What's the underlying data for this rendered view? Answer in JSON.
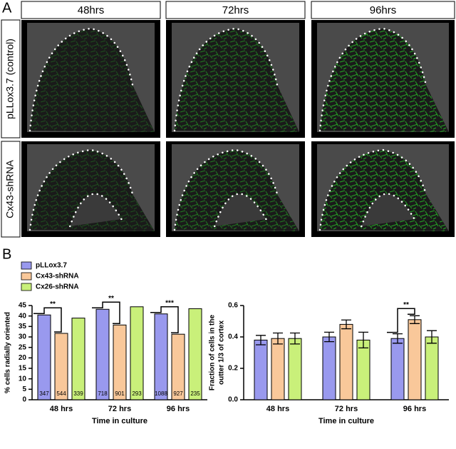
{
  "panel_a": {
    "label": "A",
    "columns": [
      "48hrs",
      "72hrs",
      "96hrs"
    ],
    "rows": [
      "pLLox3.7 (control)",
      "Cx43-shRNA"
    ]
  },
  "panel_b": {
    "label": "B"
  },
  "chart_data": [
    {
      "type": "bar",
      "ylabel": "% cells radially oriented",
      "xlabel": "Time in culture",
      "categories": [
        "48 hrs",
        "72 hrs",
        "96 hrs"
      ],
      "series": [
        {
          "name": "pLLox3.7",
          "color": "#9999ee",
          "values": [
            40.5,
            43.2,
            41
          ],
          "counts": [
            347,
            718,
            1088
          ]
        },
        {
          "name": "Cx43-shRNA",
          "color": "#f9c89a",
          "values": [
            31.7,
            35.7,
            31.3
          ],
          "counts": [
            544,
            901,
            927
          ]
        },
        {
          "name": "Cx26-shRNA",
          "color": "#c9f07a",
          "values": [
            39,
            44.4,
            43.5
          ],
          "counts": [
            339,
            293,
            235
          ]
        }
      ],
      "ylim": [
        0,
        45
      ],
      "yticks": [
        0,
        5,
        10,
        15,
        20,
        25,
        30,
        35,
        40,
        45
      ],
      "annotations": [
        {
          "category": "48 hrs",
          "text": "**"
        },
        {
          "category": "72 hrs",
          "text": "**"
        },
        {
          "category": "96 hrs",
          "text": "***"
        }
      ]
    },
    {
      "type": "bar",
      "ylabel": [
        "Fraction of cells in the",
        "outter 1/3 of cortex"
      ],
      "xlabel": "Time in culture",
      "categories": [
        "48 hrs",
        "72 hrs",
        "96 hrs"
      ],
      "series": [
        {
          "color": "#9999ee",
          "values": [
            0.38,
            0.4,
            0.39
          ],
          "errors": [
            0.03,
            0.03,
            0.03
          ]
        },
        {
          "color": "#f9c89a",
          "values": [
            0.39,
            0.48,
            0.51
          ],
          "errors": [
            0.035,
            0.028,
            0.025
          ]
        },
        {
          "color": "#c9f07a",
          "values": [
            0.39,
            0.38,
            0.4
          ],
          "errors": [
            0.035,
            0.05,
            0.04
          ]
        }
      ],
      "ylim": [
        0,
        0.6
      ],
      "yticks": [
        {
          "value": 0,
          "label": "0.0"
        },
        0.2,
        0.4,
        0.6
      ],
      "annotations": [
        {
          "category": "96 hrs",
          "text": "**"
        }
      ]
    }
  ]
}
